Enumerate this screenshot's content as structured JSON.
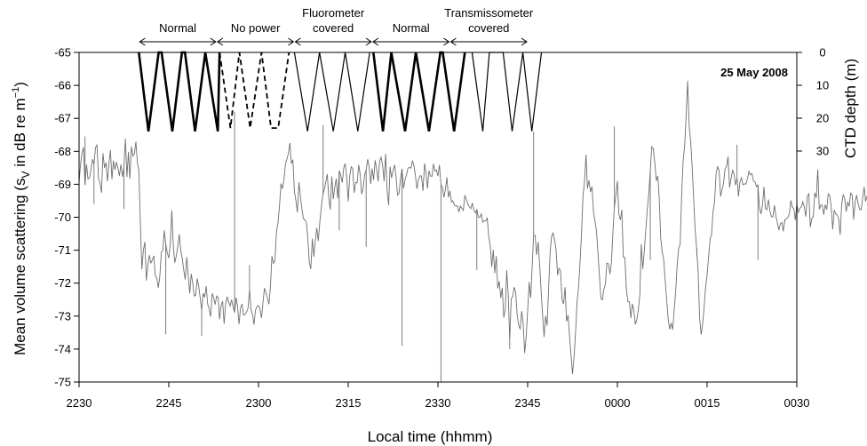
{
  "chart_data": {
    "type": "line",
    "date_label": "25 May 2008",
    "xlabel": "Local time (hhmm)",
    "ylabel_left": "Mean volume scattering (s",
    "ylabel_left_sub": "V",
    "ylabel_left_rest": " in dB re m",
    "ylabel_left_sup": "−1",
    "ylabel_left_close": ")",
    "ylabel_right": "CTD depth (m)",
    "x_tick_labels": [
      "2230",
      "2245",
      "2300",
      "2315",
      "2330",
      "2345",
      "0000",
      "0015",
      "0030"
    ],
    "x_ticks_min": [
      0,
      15,
      30,
      45,
      60,
      75,
      90,
      105,
      120
    ],
    "xlim_min": [
      0,
      120
    ],
    "y_ticks": [
      -65,
      -66,
      -67,
      -68,
      -69,
      -70,
      -71,
      -72,
      -73,
      -74,
      -75
    ],
    "ylim": [
      -75,
      -65
    ],
    "right_ticks": [
      0,
      10,
      20,
      30
    ],
    "segments": [
      {
        "label": [
          "Normal"
        ],
        "start_min": 10,
        "end_min": 23
      },
      {
        "label": [
          "No power"
        ],
        "start_min": 23,
        "end_min": 36
      },
      {
        "label": [
          "Fluorometer",
          "covered"
        ],
        "start_min": 36,
        "end_min": 49
      },
      {
        "label": [
          "Normal"
        ],
        "start_min": 49,
        "end_min": 62
      },
      {
        "label": [
          "Transmissometer",
          "covered"
        ],
        "start_min": 62,
        "end_min": 75
      }
    ],
    "ctd_profiles": [
      {
        "style": "thick",
        "points": [
          [
            10.0,
            0
          ],
          [
            11.6,
            24
          ],
          [
            13.3,
            0
          ],
          [
            13.8,
            0
          ],
          [
            15.6,
            24
          ],
          [
            17.2,
            0
          ],
          [
            17.7,
            0
          ],
          [
            19.4,
            24
          ],
          [
            21.1,
            0
          ],
          [
            23.2,
            24
          ],
          [
            23.5,
            0
          ]
        ]
      },
      {
        "style": "dashed",
        "points": [
          [
            23.5,
            0
          ],
          [
            25.3,
            23
          ],
          [
            26.8,
            0
          ],
          [
            28.6,
            23
          ],
          [
            30.5,
            0
          ],
          [
            32.1,
            23
          ],
          [
            33.3,
            23
          ],
          [
            35.1,
            0
          ]
        ]
      },
      {
        "style": "thin",
        "points": [
          [
            36.0,
            0
          ],
          [
            38.2,
            24
          ],
          [
            40.2,
            0
          ],
          [
            42.5,
            24
          ],
          [
            44.5,
            0
          ],
          [
            46.6,
            24
          ],
          [
            48.6,
            0
          ]
        ]
      },
      {
        "style": "thick",
        "points": [
          [
            49.2,
            0
          ],
          [
            50.8,
            24
          ],
          [
            52.2,
            0
          ],
          [
            54.5,
            24
          ],
          [
            56.3,
            0
          ],
          [
            58.5,
            24
          ],
          [
            60.4,
            0
          ],
          [
            60.8,
            0
          ],
          [
            62.7,
            24
          ],
          [
            64.5,
            0
          ]
        ]
      },
      {
        "style": "thin",
        "points": [
          [
            65.7,
            0
          ],
          [
            67.5,
            24
          ],
          [
            68.6,
            0
          ],
          [
            70.9,
            0
          ],
          [
            72.4,
            24
          ],
          [
            74.2,
            0
          ],
          [
            75.7,
            24
          ],
          [
            77.3,
            0
          ]
        ]
      }
    ],
    "backscatter": {
      "step_min": 0.25,
      "values": [
        -68.93,
        -68.4,
        -68.04,
        -67.88,
        -69.02,
        -68.4,
        -68.84,
        -68.81,
        -68.55,
        -68.24,
        -68.4,
        -67.89,
        -67.81,
        -68.82,
        -68.97,
        -69.26,
        -68.06,
        -68.5,
        -68.34,
        -68.91,
        -68.35,
        -67.96,
        -68.85,
        -68.28,
        -68.56,
        -68.33,
        -68.51,
        -68.75,
        -68.4,
        -68.77,
        -68.48,
        -67.62,
        -68.78,
        -68.02,
        -68.83,
        -67.86,
        -68.14,
        -68.07,
        -67.71,
        -68.36,
        -68.57,
        -70.19,
        -71.58,
        -71.0,
        -70.75,
        -71.92,
        -71.47,
        -71.15,
        -71.39,
        -71.3,
        -71.17,
        -71.78,
        -71.84,
        -72.14,
        -71.8,
        -71.06,
        -71.0,
        -70.4,
        -70.82,
        -71.08,
        -71.24,
        -70.83,
        -69.79,
        -70.86,
        -71.38,
        -71.18,
        -70.9,
        -70.52,
        -71.01,
        -71.24,
        -71.6,
        -71.89,
        -71.21,
        -71.76,
        -72.31,
        -71.72,
        -71.98,
        -72.39,
        -72.37,
        -71.86,
        -72.1,
        -72.45,
        -72.82,
        -72.31,
        -72.43,
        -72.09,
        -72.64,
        -72.78,
        -73.02,
        -72.31,
        -72.44,
        -72.65,
        -72.39,
        -72.43,
        -73.1,
        -72.68,
        -72.55,
        -73.23,
        -72.63,
        -72.41,
        -72.57,
        -72.69,
        -72.5,
        -72.72,
        -72.89,
        -72.44,
        -72.69,
        -73.24,
        -72.75,
        -72.63,
        -72.97,
        -72.95,
        -72.88,
        -72.76,
        -72.2,
        -72.81,
        -72.96,
        -73.26,
        -72.82,
        -72.71,
        -72.68,
        -72.79,
        -73.06,
        -72.6,
        -72.15,
        -72.29,
        -72.46,
        -72.64,
        -72.07,
        -71.18,
        -71.4,
        -71.33,
        -70.44,
        -70.18,
        -69.67,
        -68.98,
        -69.14,
        -68.87,
        -68.4,
        -68.23,
        -68.06,
        -67.75,
        -68.38,
        -68.25,
        -69.22,
        -69.49,
        -69.85,
        -68.94,
        -69.37,
        -69.73,
        -70.04,
        -70.08,
        -70.16,
        -70.64,
        -71.37,
        -71.57,
        -70.65,
        -71.2,
        -70.7,
        -70.32,
        -70.72,
        -70.15,
        -69.7,
        -69.31,
        -69.16,
        -68.92,
        -68.69,
        -69.4,
        -69.77,
        -68.76,
        -69.45,
        -69.08,
        -68.83,
        -69.43,
        -68.59,
        -68.73,
        -68.95,
        -68.5,
        -68.37,
        -68.79,
        -69.52,
        -68.75,
        -68.47,
        -68.52,
        -69.26,
        -68.94,
        -68.96,
        -68.41,
        -68.71,
        -69.29,
        -69.14,
        -68.7,
        -68.56,
        -68.24,
        -68.49,
        -68.99,
        -68.52,
        -68.87,
        -68.27,
        -68.55,
        -68.91,
        -68.29,
        -68.18,
        -68.42,
        -68.91,
        -68.08,
        -69.19,
        -69.64,
        -68.47,
        -68.81,
        -68.58,
        -68.41,
        -68.79,
        -69.33,
        -69.27,
        -68.81,
        -68.53,
        -69.13,
        -68.85,
        -68.72,
        -68.51,
        -68.49,
        -68.51,
        -68.28,
        -68.45,
        -68.77,
        -69.14,
        -68.86,
        -68.74,
        -68.75,
        -69.2,
        -68.37,
        -68.63,
        -69.13,
        -68.59,
        -68.75,
        -68.76,
        -68.38,
        -68.6,
        -68.57,
        -68.75,
        -68.41,
        -69.01,
        -69.09,
        -69.4,
        -69.16,
        -68.79,
        -69.4,
        -69.2,
        -69.54,
        -69.5,
        -69.63,
        -69.66,
        -69.65,
        -69.84,
        -69.66,
        -69.73,
        -69.79,
        -69.33,
        -69.47,
        -69.61,
        -69.68,
        -69.74,
        -69.57,
        -69.78,
        -69.87,
        -69.77,
        -70.0,
        -70.01,
        -69.9,
        -70.15,
        -70.11,
        -70.11,
        -70.03,
        -70.58,
        -70.87,
        -71.51,
        -70.99,
        -71.7,
        -71.18,
        -72.16,
        -71.94,
        -72.45,
        -72.14,
        -73.04,
        -72.8,
        -71.61,
        -72.32,
        -73.73,
        -72.47,
        -72.41,
        -72.12,
        -72.27,
        -72.97,
        -73.27,
        -73.4,
        -72.85,
        -73.24,
        -74.12,
        -73.63,
        -72.83,
        -71.97,
        -72.45,
        -71.55,
        -70.54,
        -70.55,
        -71.14,
        -70.75,
        -71.44,
        -72.26,
        -72.97,
        -73.63,
        -72.99,
        -73.29,
        -72.15,
        -71.06,
        -70.59,
        -70.48,
        -70.69,
        -70.99,
        -71.76,
        -71.55,
        -71.62,
        -72.5,
        -72.63,
        -72.12,
        -73.16,
        -72.97,
        -73.6,
        -74.17,
        -74.76,
        -74.25,
        -73.51,
        -72.61,
        -72.13,
        -71.42,
        -70.52,
        -69.36,
        -68.92,
        -68.1,
        -69.13,
        -68.88,
        -69.23,
        -69.07,
        -69.84,
        -70.12,
        -70.4,
        -71.06,
        -71.78,
        -72.48,
        -72.5,
        -72.19,
        -72.04,
        -71.39,
        -71.41,
        -71.72,
        -71.39,
        -70.44,
        -69.7,
        -69.34,
        -68.9,
        -69.91,
        -70.08,
        -69.77,
        -71.21,
        -71.22,
        -72.18,
        -72.56,
        -72.57,
        -73.06,
        -72.63,
        -72.82,
        -73.25,
        -73.11,
        -72.8,
        -72.35,
        -70.82,
        -71.57,
        -71.02,
        -70.38,
        -69.75,
        -69.31,
        -68.6,
        -67.86,
        -67.92,
        -68.33,
        -68.89,
        -68.75,
        -69.41,
        -70.64,
        -71.05,
        -71.31,
        -71.95,
        -72.52,
        -73.09,
        -73.4,
        -73.21,
        -73.41,
        -72.79,
        -72.23,
        -71.44,
        -70.93,
        -70.81,
        -69.26,
        -68.26,
        -67.81,
        -66.93,
        -65.86,
        -67.23,
        -67.68,
        -68.49,
        -69.39,
        -70.37,
        -70.95,
        -71.65,
        -73.07,
        -73.56,
        -73.23,
        -72.75,
        -72.12,
        -71.74,
        -71.2,
        -70.65,
        -70.54,
        -69.82,
        -69.54,
        -68.68,
        -68.47,
        -68.57,
        -69.37,
        -69.17,
        -68.97,
        -68.53,
        -68.46,
        -68.16,
        -69.1,
        -68.84,
        -68.58,
        -68.68,
        -69.03,
        -68.8,
        -69.37,
        -68.92,
        -68.8,
        -69.01,
        -68.99,
        -68.99,
        -68.82,
        -68.61,
        -68.71,
        -68.68,
        -68.9,
        -68.93,
        -69.07,
        -69.02,
        -69.69,
        -69.9,
        -69.65,
        -69.08,
        -69.74,
        -69.77,
        -69.46,
        -69.81,
        -69.98,
        -69.99,
        -69.64,
        -69.96,
        -70.17,
        -70.39,
        -70.19,
        -70.16,
        -70.43,
        -70.07,
        -70.05,
        -70.01,
        -69.89,
        -69.49,
        -69.7,
        -69.73,
        -70.09,
        -69.6,
        -69.85,
        -69.73,
        -69.69,
        -69.53,
        -69.69,
        -69.98,
        -69.36,
        -69.29,
        -70.3,
        -70.04,
        -69.99,
        -69.26,
        -69.41,
        -68.55,
        -69.76,
        -69.63,
        -69.64,
        -69.92,
        -69.62,
        -69.77,
        -69.29,
        -69.33,
        -69.68,
        -70.37,
        -69.78,
        -69.9,
        -69.93,
        -70.04,
        -70.54,
        -69.6,
        -69.32,
        -69.42,
        -69.83,
        -69.53,
        -69.67,
        -69.27,
        -69.33,
        -70.07,
        -69.53,
        -69.33,
        -69.59,
        -69.76,
        -69.78,
        -69.42,
        -69.08,
        -69.52,
        -69.35,
        -69.24,
        -69.6,
        -69.31,
        -69.23,
        -69.65,
        -69.45,
        -69.57,
        -70.48,
        -70.5,
        -71.17,
        -70.45,
        -69.72,
        -70.13,
        -69.98,
        -69.84,
        -69.35,
        -69.71,
        -69.61,
        -69.88,
        -69.49,
        -69.67,
        -69.61,
        -69.35,
        -69.59,
        -69.08,
        -69.58,
        -69.66,
        -69.27,
        -69.44,
        -69.42,
        -69.38,
        -69.69,
        -69.49,
        -69.86,
        -69.8,
        -69.35,
        -69.37,
        -69.27,
        -69.62,
        -69.76,
        -69.92,
        -69.48,
        -69.54,
        -69.15,
        -70.56,
        -69.73,
        -70.34,
        -69.78,
        -70.29,
        -69.65,
        -69.98,
        -69.66,
        -69.3,
        -69.4,
        -69.81,
        -69.61,
        -69.65,
        -69.51,
        -69.25,
        -69.23,
        -69.35,
        -70.35,
        -69.85,
        -69.57,
        -69.92,
        -69.65,
        -69.14,
        -69.38,
        -69.55,
        -70.17,
        -69.3,
        -69.71,
        -70.52,
        -70.6,
        -69.6,
        -69.55,
        -70.29,
        -70.15,
        -69.91,
        -69.61,
        -69.27,
        -70.11,
        -69.7,
        -69.56,
        -69.64,
        -69.69,
        -69.53,
        -69.55,
        -69.84,
        -69.35,
        -69.81,
        -69.5,
        -69.31,
        -69.75,
        -69.13,
        -69.15,
        -69.51,
        -69.29,
        -69.45,
        -69.24,
        -69.5,
        -69.44,
        -69.86,
        -69.47,
        -70.02,
        -70.04,
        -69.51,
        -69.34,
        -69.97,
        -69.69,
        -69.66,
        -69.21,
        -69.44,
        -69.8,
        -69.69,
        -69.91,
        -69.93,
        -70.05,
        -70.04,
        -69.6,
        -69.32,
        -69.68,
        -70.04,
        -69.77,
        -69.61,
        -69.45,
        -69.54,
        -69.57,
        -69.84,
        -69.24,
        -69.56,
        -69.05,
        -69.47,
        -68.92,
        -69.81,
        -69.48,
        -69.26,
        -69.66,
        -69.64,
        -69.85,
        -69.15,
        -69.52,
        -69.52,
        -69.29,
        -69.44,
        -69.36,
        -69.4,
        -69.07,
        -69.04,
        -69.68,
        -69.24
      ]
    },
    "backscatter_spikes": [
      {
        "t_min": 1.0,
        "y": -67.55
      },
      {
        "t_min": 2.5,
        "y": -69.6
      },
      {
        "t_min": 7.5,
        "y": -69.75
      },
      {
        "t_min": 14.5,
        "y": -73.55
      },
      {
        "t_min": 20.5,
        "y": -73.6
      },
      {
        "t_min": 26.0,
        "y": -66.8
      },
      {
        "t_min": 28.5,
        "y": -71.45
      },
      {
        "t_min": 40.8,
        "y": -67.2
      },
      {
        "t_min": 43.5,
        "y": -70.4
      },
      {
        "t_min": 48.0,
        "y": -70.9
      },
      {
        "t_min": 54.0,
        "y": -73.9
      },
      {
        "t_min": 60.5,
        "y": -75.0
      },
      {
        "t_min": 66.5,
        "y": -71.6
      },
      {
        "t_min": 72.0,
        "y": -74.0
      },
      {
        "t_min": 76.0,
        "y": -67.4
      },
      {
        "t_min": 89.5,
        "y": -67.25
      },
      {
        "t_min": 95.5,
        "y": -71.3
      },
      {
        "t_min": 103.3,
        "y": -71.2
      },
      {
        "t_min": 110.0,
        "y": -67.8
      },
      {
        "t_min": 113.5,
        "y": -71.3
      },
      {
        "t_min": 118.0,
        "y": -70.15
      }
    ],
    "colors": {
      "trace": "#6e6e6e",
      "profile": "#000000",
      "axis": "#000000"
    }
  }
}
